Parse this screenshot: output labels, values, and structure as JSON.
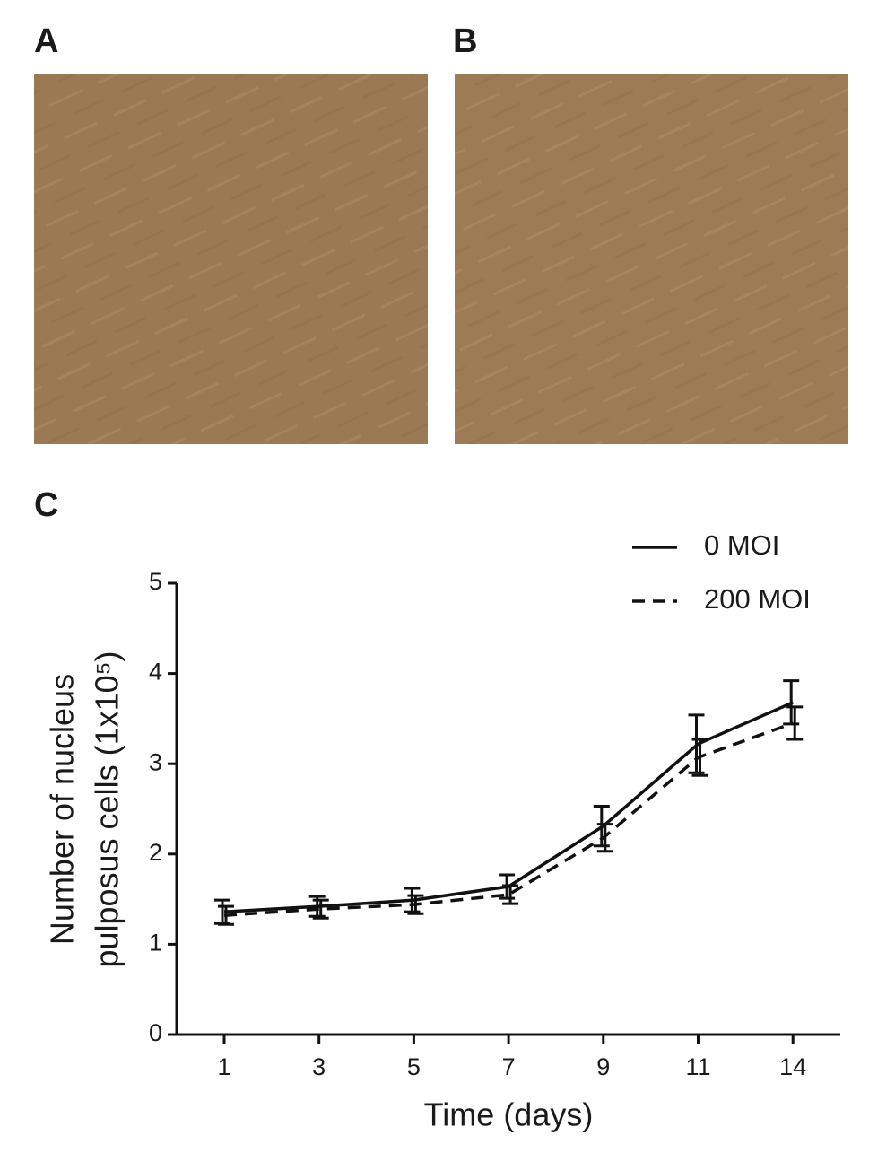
{
  "panel_labels": [
    "A",
    "B",
    "C"
  ],
  "chart_data": {
    "type": "line",
    "ylabel": [
      "Number of nucleus",
      "pulposus cells (1x10⁵)"
    ],
    "xlabel": "Time (days)",
    "categories": [
      "1",
      "3",
      "5",
      "7",
      "9",
      "11",
      "14"
    ],
    "series": [
      {
        "name": "0 MOI",
        "color": "#111111",
        "style": "solid",
        "values": [
          1.36,
          1.42,
          1.49,
          1.64,
          2.31,
          3.22,
          3.68
        ],
        "errors": [
          0.13,
          0.11,
          0.13,
          0.13,
          0.22,
          0.32,
          0.24
        ]
      },
      {
        "name": "200 MOI",
        "color": "#111111",
        "style": "dashed",
        "values": [
          1.32,
          1.39,
          1.44,
          1.55,
          2.18,
          3.07,
          3.45
        ],
        "errors": [
          0.1,
          0.1,
          0.1,
          0.1,
          0.15,
          0.2,
          0.18
        ]
      }
    ],
    "ylim": [
      0,
      5
    ],
    "yticks": [
      0,
      1,
      2,
      3,
      4,
      5
    ],
    "legend": "top-right"
  }
}
